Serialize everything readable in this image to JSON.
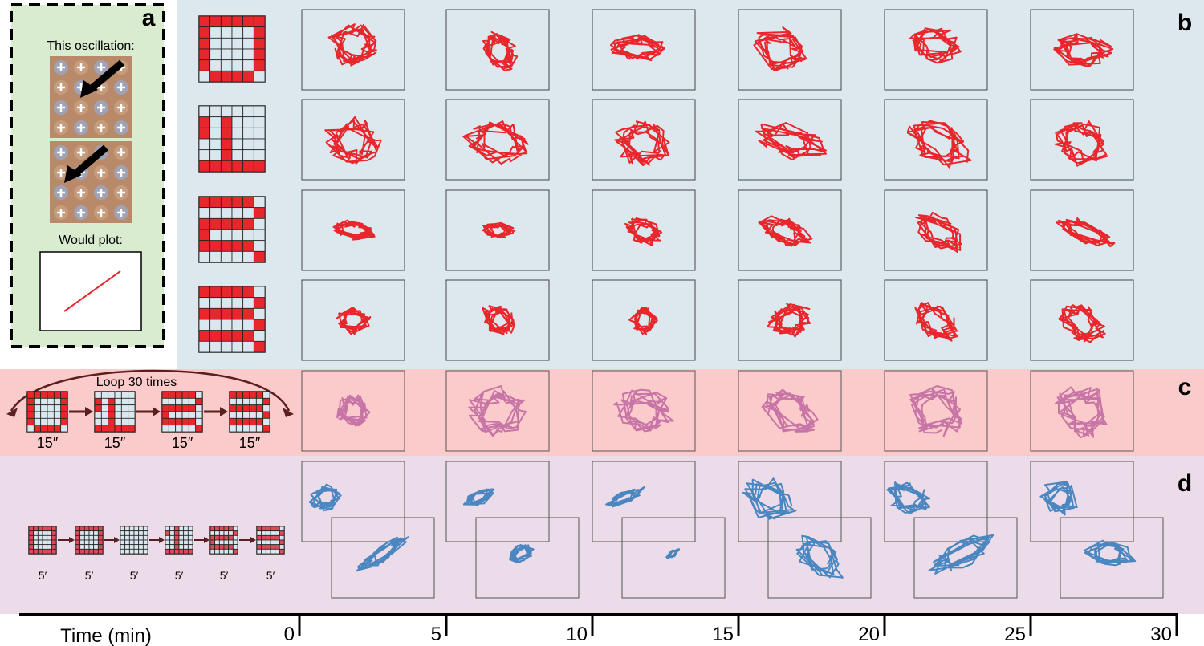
{
  "panels": {
    "a": {
      "letter": "a",
      "caption_top": "This oscillation:",
      "caption_bottom": "Would plot:"
    },
    "b": {
      "letter": "b"
    },
    "c": {
      "letter": "c",
      "loop_label": "Loop 30 times",
      "durations": [
        "15″",
        "15″",
        "15″",
        "15″"
      ]
    },
    "d": {
      "letter": "d",
      "durations": [
        "5′",
        "5′",
        "5′",
        "5′",
        "5′",
        "5′"
      ]
    }
  },
  "patterns": {
    "b": [
      [
        [
          1,
          1,
          1,
          1,
          1,
          1
        ],
        [
          1,
          0,
          0,
          0,
          0,
          1
        ],
        [
          1,
          0,
          0,
          0,
          0,
          1
        ],
        [
          1,
          0,
          0,
          0,
          0,
          1
        ],
        [
          1,
          0,
          0,
          0,
          0,
          1
        ],
        [
          0,
          1,
          1,
          1,
          1,
          0
        ]
      ],
      [
        [
          0,
          0,
          0,
          0,
          0,
          0
        ],
        [
          1,
          0,
          1,
          0,
          0,
          0
        ],
        [
          1,
          0,
          1,
          0,
          0,
          0
        ],
        [
          0,
          0,
          1,
          0,
          0,
          0
        ],
        [
          0,
          0,
          1,
          0,
          0,
          0
        ],
        [
          1,
          1,
          1,
          1,
          1,
          1
        ]
      ],
      [
        [
          1,
          1,
          1,
          1,
          1,
          0
        ],
        [
          0,
          0,
          0,
          0,
          0,
          1
        ],
        [
          1,
          1,
          1,
          1,
          1,
          0
        ],
        [
          1,
          0,
          0,
          0,
          0,
          0
        ],
        [
          1,
          1,
          1,
          1,
          1,
          0
        ],
        [
          0,
          0,
          0,
          0,
          0,
          1
        ]
      ],
      [
        [
          1,
          1,
          1,
          1,
          1,
          0
        ],
        [
          0,
          0,
          0,
          0,
          0,
          1
        ],
        [
          1,
          1,
          1,
          1,
          1,
          0
        ],
        [
          0,
          0,
          0,
          0,
          0,
          1
        ],
        [
          1,
          1,
          1,
          1,
          1,
          0
        ],
        [
          0,
          0,
          0,
          0,
          0,
          1
        ]
      ]
    ],
    "d": [
      [
        [
          1,
          1,
          1,
          1,
          1,
          1
        ],
        [
          1,
          0,
          0,
          0,
          0,
          1
        ],
        [
          1,
          0,
          0,
          0,
          0,
          1
        ],
        [
          1,
          0,
          0,
          0,
          0,
          1
        ],
        [
          1,
          0,
          0,
          0,
          0,
          1
        ],
        [
          1,
          1,
          1,
          1,
          1,
          1
        ]
      ],
      [
        [
          1,
          1,
          1,
          1,
          1,
          1
        ],
        [
          1,
          0,
          0,
          0,
          0,
          1
        ],
        [
          1,
          0,
          0,
          0,
          0,
          1
        ],
        [
          1,
          0,
          0,
          0,
          0,
          1
        ],
        [
          1,
          0,
          0,
          0,
          0,
          1
        ],
        [
          1,
          1,
          1,
          1,
          1,
          1
        ]
      ],
      [
        [
          0,
          0,
          0,
          0,
          0,
          0
        ],
        [
          0,
          0,
          0,
          0,
          0,
          0
        ],
        [
          0,
          0,
          0,
          0,
          0,
          0
        ],
        [
          0,
          0,
          0,
          0,
          0,
          0
        ],
        [
          0,
          0,
          0,
          0,
          0,
          0
        ],
        [
          0,
          0,
          0,
          0,
          0,
          0
        ]
      ],
      [
        [
          0,
          0,
          1,
          0,
          0,
          0
        ],
        [
          1,
          0,
          1,
          0,
          0,
          0
        ],
        [
          0,
          0,
          1,
          0,
          0,
          0
        ],
        [
          0,
          0,
          1,
          0,
          0,
          0
        ],
        [
          0,
          0,
          1,
          0,
          0,
          0
        ],
        [
          1,
          1,
          1,
          1,
          1,
          1
        ]
      ],
      [
        [
          1,
          1,
          1,
          1,
          1,
          0
        ],
        [
          0,
          0,
          0,
          0,
          0,
          1
        ],
        [
          1,
          1,
          1,
          1,
          1,
          0
        ],
        [
          1,
          0,
          0,
          0,
          0,
          0
        ],
        [
          1,
          1,
          1,
          1,
          1,
          0
        ],
        [
          0,
          0,
          0,
          0,
          0,
          1
        ]
      ],
      [
        [
          1,
          1,
          1,
          1,
          1,
          0
        ],
        [
          0,
          0,
          0,
          0,
          0,
          1
        ],
        [
          1,
          1,
          1,
          1,
          1,
          0
        ],
        [
          0,
          0,
          0,
          0,
          0,
          1
        ],
        [
          1,
          1,
          1,
          1,
          1,
          0
        ],
        [
          0,
          0,
          0,
          0,
          0,
          1
        ]
      ]
    ]
  },
  "time_axis": {
    "label": "Time (min)",
    "ticks": [
      "0",
      "5",
      "10",
      "15",
      "20",
      "25",
      "30"
    ]
  },
  "colors": {
    "panel_a_bg": "#d9ecd0",
    "panel_b_bg": "#dce8ee",
    "panel_c_bg": "#fbcaca",
    "panel_d_bg": "#ecdcea",
    "trace_b": "#e8262b",
    "trace_c": "#c774a6",
    "trace_d": "#4a86c0",
    "cell_on": "#e8262b",
    "cell_on_d": "#de4a5a",
    "cell_off": "#dbe7ee",
    "arrow": "#5a2020"
  }
}
